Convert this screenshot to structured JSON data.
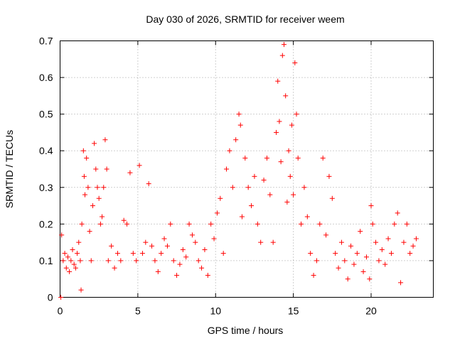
{
  "chart_data": {
    "type": "scatter",
    "title": "Day 030 of 2026, SRMTID for receiver weem",
    "xlabel": "GPS time / hours",
    "ylabel": "SRMTID / TECUs",
    "xlim": [
      0,
      24
    ],
    "ylim": [
      0,
      0.7
    ],
    "xticks": [
      0,
      5,
      10,
      15,
      20
    ],
    "xtick_labels": [
      "0",
      "5",
      "10",
      "15",
      "20"
    ],
    "yticks": [
      0,
      0.1,
      0.2,
      0.3,
      0.4,
      0.5,
      0.6,
      0.7
    ],
    "ytick_labels": [
      "0",
      "0.1",
      "0.2",
      "0.3",
      "0.4",
      "0.5",
      "0.6",
      "0.7"
    ],
    "grid": true,
    "marker": "+",
    "series": [
      {
        "name": "SRMTID",
        "color": "#ff0000",
        "points": [
          [
            0.05,
            0.0
          ],
          [
            0.1,
            0.17
          ],
          [
            0.2,
            0.1
          ],
          [
            0.3,
            0.12
          ],
          [
            0.4,
            0.08
          ],
          [
            0.5,
            0.11
          ],
          [
            0.6,
            0.07
          ],
          [
            0.7,
            0.1
          ],
          [
            0.8,
            0.13
          ],
          [
            0.9,
            0.09
          ],
          [
            1.0,
            0.08
          ],
          [
            1.1,
            0.12
          ],
          [
            1.2,
            0.15
          ],
          [
            1.3,
            0.1
          ],
          [
            1.35,
            0.02
          ],
          [
            1.4,
            0.2
          ],
          [
            1.5,
            0.4
          ],
          [
            1.55,
            0.33
          ],
          [
            1.6,
            0.28
          ],
          [
            1.7,
            0.38
          ],
          [
            1.8,
            0.3
          ],
          [
            1.9,
            0.18
          ],
          [
            2.0,
            0.1
          ],
          [
            2.1,
            0.25
          ],
          [
            2.2,
            0.42
          ],
          [
            2.3,
            0.35
          ],
          [
            2.4,
            0.3
          ],
          [
            2.5,
            0.27
          ],
          [
            2.6,
            0.2
          ],
          [
            2.7,
            0.22
          ],
          [
            2.8,
            0.3
          ],
          [
            2.9,
            0.43
          ],
          [
            3.0,
            0.35
          ],
          [
            3.1,
            0.1
          ],
          [
            3.3,
            0.14
          ],
          [
            3.5,
            0.08
          ],
          [
            3.7,
            0.12
          ],
          [
            3.9,
            0.1
          ],
          [
            4.1,
            0.21
          ],
          [
            4.3,
            0.2
          ],
          [
            4.5,
            0.34
          ],
          [
            4.7,
            0.12
          ],
          [
            4.9,
            0.1
          ],
          [
            5.1,
            0.36
          ],
          [
            5.3,
            0.12
          ],
          [
            5.5,
            0.15
          ],
          [
            5.7,
            0.31
          ],
          [
            5.9,
            0.14
          ],
          [
            6.1,
            0.1
          ],
          [
            6.3,
            0.07
          ],
          [
            6.5,
            0.12
          ],
          [
            6.7,
            0.16
          ],
          [
            6.9,
            0.14
          ],
          [
            7.1,
            0.2
          ],
          [
            7.3,
            0.1
          ],
          [
            7.5,
            0.06
          ],
          [
            7.7,
            0.09
          ],
          [
            7.9,
            0.13
          ],
          [
            8.1,
            0.11
          ],
          [
            8.3,
            0.2
          ],
          [
            8.5,
            0.17
          ],
          [
            8.7,
            0.15
          ],
          [
            8.9,
            0.1
          ],
          [
            9.1,
            0.08
          ],
          [
            9.3,
            0.13
          ],
          [
            9.5,
            0.06
          ],
          [
            9.7,
            0.2
          ],
          [
            9.9,
            0.16
          ],
          [
            10.1,
            0.23
          ],
          [
            10.3,
            0.27
          ],
          [
            10.5,
            0.12
          ],
          [
            10.7,
            0.35
          ],
          [
            10.9,
            0.4
          ],
          [
            11.1,
            0.3
          ],
          [
            11.3,
            0.43
          ],
          [
            11.5,
            0.5
          ],
          [
            11.6,
            0.47
          ],
          [
            11.7,
            0.22
          ],
          [
            11.9,
            0.38
          ],
          [
            12.1,
            0.3
          ],
          [
            12.3,
            0.25
          ],
          [
            12.5,
            0.33
          ],
          [
            12.7,
            0.2
          ],
          [
            12.9,
            0.15
          ],
          [
            13.1,
            0.32
          ],
          [
            13.3,
            0.38
          ],
          [
            13.5,
            0.28
          ],
          [
            13.7,
            0.15
          ],
          [
            13.9,
            0.45
          ],
          [
            14.0,
            0.59
          ],
          [
            14.1,
            0.48
          ],
          [
            14.2,
            0.37
          ],
          [
            14.3,
            0.66
          ],
          [
            14.4,
            0.69
          ],
          [
            14.5,
            0.55
          ],
          [
            14.6,
            0.26
          ],
          [
            14.7,
            0.4
          ],
          [
            14.8,
            0.33
          ],
          [
            14.9,
            0.47
          ],
          [
            15.0,
            0.28
          ],
          [
            15.1,
            0.64
          ],
          [
            15.2,
            0.5
          ],
          [
            15.3,
            0.38
          ],
          [
            15.5,
            0.2
          ],
          [
            15.7,
            0.3
          ],
          [
            15.9,
            0.22
          ],
          [
            16.1,
            0.12
          ],
          [
            16.3,
            0.06
          ],
          [
            16.5,
            0.1
          ],
          [
            16.7,
            0.2
          ],
          [
            16.9,
            0.38
          ],
          [
            17.1,
            0.17
          ],
          [
            17.3,
            0.33
          ],
          [
            17.5,
            0.27
          ],
          [
            17.7,
            0.12
          ],
          [
            17.9,
            0.08
          ],
          [
            18.1,
            0.15
          ],
          [
            18.3,
            0.1
          ],
          [
            18.5,
            0.05
          ],
          [
            18.7,
            0.14
          ],
          [
            18.9,
            0.09
          ],
          [
            19.1,
            0.12
          ],
          [
            19.3,
            0.18
          ],
          [
            19.5,
            0.07
          ],
          [
            19.7,
            0.11
          ],
          [
            19.9,
            0.05
          ],
          [
            20.0,
            0.25
          ],
          [
            20.1,
            0.2
          ],
          [
            20.3,
            0.15
          ],
          [
            20.5,
            0.1
          ],
          [
            20.7,
            0.13
          ],
          [
            20.9,
            0.09
          ],
          [
            21.1,
            0.16
          ],
          [
            21.3,
            0.12
          ],
          [
            21.5,
            0.2
          ],
          [
            21.7,
            0.23
          ],
          [
            21.9,
            0.04
          ],
          [
            22.1,
            0.15
          ],
          [
            22.3,
            0.2
          ],
          [
            22.5,
            0.12
          ],
          [
            22.7,
            0.14
          ],
          [
            22.9,
            0.16
          ]
        ]
      }
    ]
  }
}
